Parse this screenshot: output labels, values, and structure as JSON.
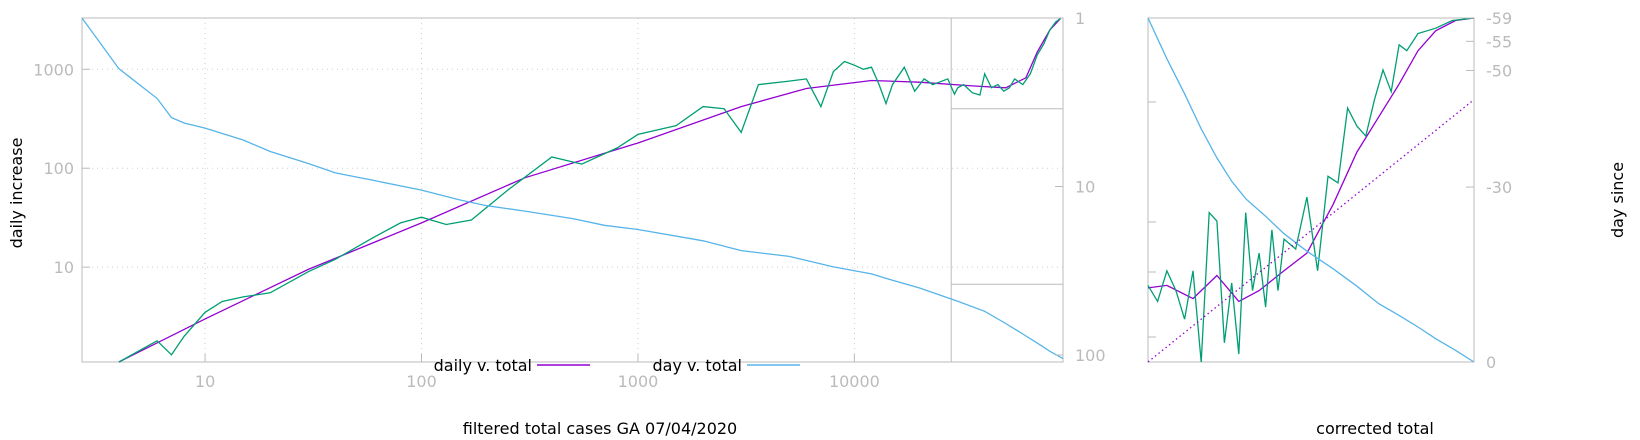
{
  "chart_data": [
    {
      "type": "line",
      "xlabel": "filtered total cases GA 07/04/2020",
      "ylabel": "daily increase",
      "y2label": "",
      "x_scale": "log",
      "y_scale": "log",
      "y2_scale": "log",
      "y2_reversed": true,
      "xlim": [
        2.7,
        92000
      ],
      "ylim": [
        1.1,
        3300
      ],
      "y2lim": [
        1,
        110
      ],
      "x_ticks": [
        10,
        100,
        1000,
        10000
      ],
      "x_tick_labels": [
        "10",
        "100",
        "1000",
        "10000"
      ],
      "y_ticks": [
        10,
        100,
        1000
      ],
      "y_tick_labels": [
        "10",
        "100",
        "1000"
      ],
      "y2_ticks": [
        1,
        10,
        100
      ],
      "y2_tick_labels": [
        "1",
        "10",
        "100"
      ],
      "grid": true,
      "legend_position": "bottom-center",
      "series": [
        {
          "name": "daily v. total",
          "color": "#9400d3",
          "axis": "y",
          "x": [
            4,
            10,
            30,
            100,
            300,
            1000,
            3000,
            6000,
            12000,
            20000,
            35000,
            50000,
            62000,
            70000,
            80000,
            90000
          ],
          "y": [
            1.1,
            3.0,
            9.5,
            28,
            80,
            180,
            420,
            640,
            770,
            740,
            680,
            650,
            820,
            1500,
            2500,
            3300
          ]
        },
        {
          "name": "",
          "color": "#009e73",
          "axis": "y",
          "x": [
            4,
            6,
            7,
            8,
            10,
            12,
            15,
            20,
            30,
            40,
            60,
            80,
            100,
            130,
            170,
            250,
            400,
            550,
            800,
            1000,
            1500,
            2000,
            2500,
            3000,
            3600,
            5000,
            6000,
            7000,
            8000,
            9000,
            10000,
            11000,
            12000,
            13000,
            14000,
            15000,
            17000,
            19000,
            21000,
            23000,
            25000,
            27000,
            29000,
            30000,
            32000,
            35000,
            38000,
            40000,
            43000,
            46000,
            49000,
            52000,
            55000,
            60000,
            65000,
            70000,
            75000,
            80000,
            85000,
            90000
          ],
          "y": [
            1.1,
            1.8,
            1.3,
            2.0,
            3.5,
            4.5,
            5.0,
            5.5,
            9.0,
            12,
            20,
            28,
            32,
            27,
            30,
            60,
            130,
            110,
            160,
            220,
            270,
            420,
            400,
            230,
            700,
            760,
            800,
            420,
            950,
            1200,
            1100,
            1000,
            1050,
            700,
            450,
            700,
            1050,
            600,
            800,
            700,
            750,
            800,
            560,
            650,
            700,
            580,
            550,
            900,
            650,
            700,
            600,
            650,
            800,
            700,
            900,
            1400,
            1800,
            2500,
            3000,
            3300
          ]
        },
        {
          "name": "day v. total",
          "color": "#56b4e9",
          "axis": "y2",
          "x": [
            2.7,
            4,
            6,
            7,
            8,
            10,
            15,
            20,
            30,
            40,
            60,
            100,
            150,
            200,
            300,
            500,
            700,
            1000,
            2000,
            3000,
            5000,
            8000,
            12000,
            15000,
            20000,
            30000,
            40000,
            50000,
            60000,
            70000,
            80000,
            92000
          ],
          "y2": [
            1.0,
            2.0,
            3.0,
            3.9,
            4.2,
            4.5,
            5.3,
            6.2,
            7.3,
            8.3,
            9.2,
            10.5,
            12,
            13,
            14.0,
            15.5,
            17,
            18,
            21,
            24,
            26,
            30,
            33,
            36,
            40,
            48,
            55,
            65,
            75,
            85,
            95,
            105
          ]
        }
      ]
    },
    {
      "type": "line",
      "xlabel": "corrected total",
      "ylabel": "",
      "y2label": "day since",
      "x_scale": "log",
      "y_scale": "log",
      "y2_scale": "linear",
      "y2_reversed": true,
      "xlim": [
        28000,
        92000
      ],
      "ylim": [
        400,
        3300
      ],
      "y2lim": [
        -59,
        0
      ],
      "y2_ticks": [
        -59,
        -55,
        -50,
        -30,
        0
      ],
      "y2_tick_labels": [
        "-59",
        "-55",
        "-50",
        "-30",
        "0"
      ],
      "grid": false,
      "series": [
        {
          "name": "",
          "color": "#9400d3",
          "axis": "y",
          "x": [
            28000,
            30000,
            33000,
            36000,
            39000,
            42000,
            46000,
            50000,
            55000,
            60000,
            65000,
            70000,
            75000,
            80000,
            86000,
            92000
          ],
          "y": [
            630,
            640,
            590,
            680,
            580,
            620,
            700,
            780,
            1050,
            1450,
            1800,
            2200,
            2700,
            3050,
            3250,
            3300
          ]
        },
        {
          "name": "",
          "color": "#009e73",
          "axis": "y",
          "x": [
            28000,
            29000,
            30000,
            31000,
            32000,
            33000,
            34000,
            35000,
            36000,
            37000,
            38000,
            39000,
            40000,
            41000,
            42000,
            43000,
            44000,
            45000,
            46000,
            48000,
            50000,
            52000,
            54000,
            56000,
            58000,
            60000,
            62000,
            64000,
            66000,
            68000,
            70000,
            72000,
            75000,
            80000,
            85000,
            92000
          ],
          "y": [
            640,
            580,
            700,
            620,
            520,
            700,
            400,
            1000,
            950,
            450,
            650,
            420,
            1000,
            620,
            780,
            560,
            900,
            620,
            850,
            800,
            1100,
            700,
            1250,
            1200,
            1900,
            1700,
            1600,
            2000,
            2400,
            2100,
            2800,
            2700,
            3000,
            3100,
            3250,
            3300
          ]
        },
        {
          "name": "",
          "color": "#56b4e9",
          "axis": "y2",
          "x": [
            28000,
            30000,
            32000,
            34000,
            36000,
            38000,
            40000,
            43000,
            46000,
            50000,
            55000,
            60000,
            65000,
            70000,
            75000,
            80000,
            86000,
            92000
          ],
          "y2": [
            -59,
            -52,
            -46,
            -40,
            -35,
            -31,
            -28,
            -25,
            -22,
            -19,
            -16,
            -13,
            -10,
            -8,
            -6,
            -4,
            -2,
            0
          ]
        },
        {
          "name": "",
          "color": "#9400d3",
          "axis": "y",
          "dashed": true,
          "x": [
            28000,
            92000
          ],
          "y": [
            400,
            2000
          ]
        }
      ]
    }
  ],
  "legend": [
    {
      "label": "daily v. total",
      "color": "#9400d3"
    },
    {
      "label": "day v. total",
      "color": "#56b4e9"
    }
  ]
}
